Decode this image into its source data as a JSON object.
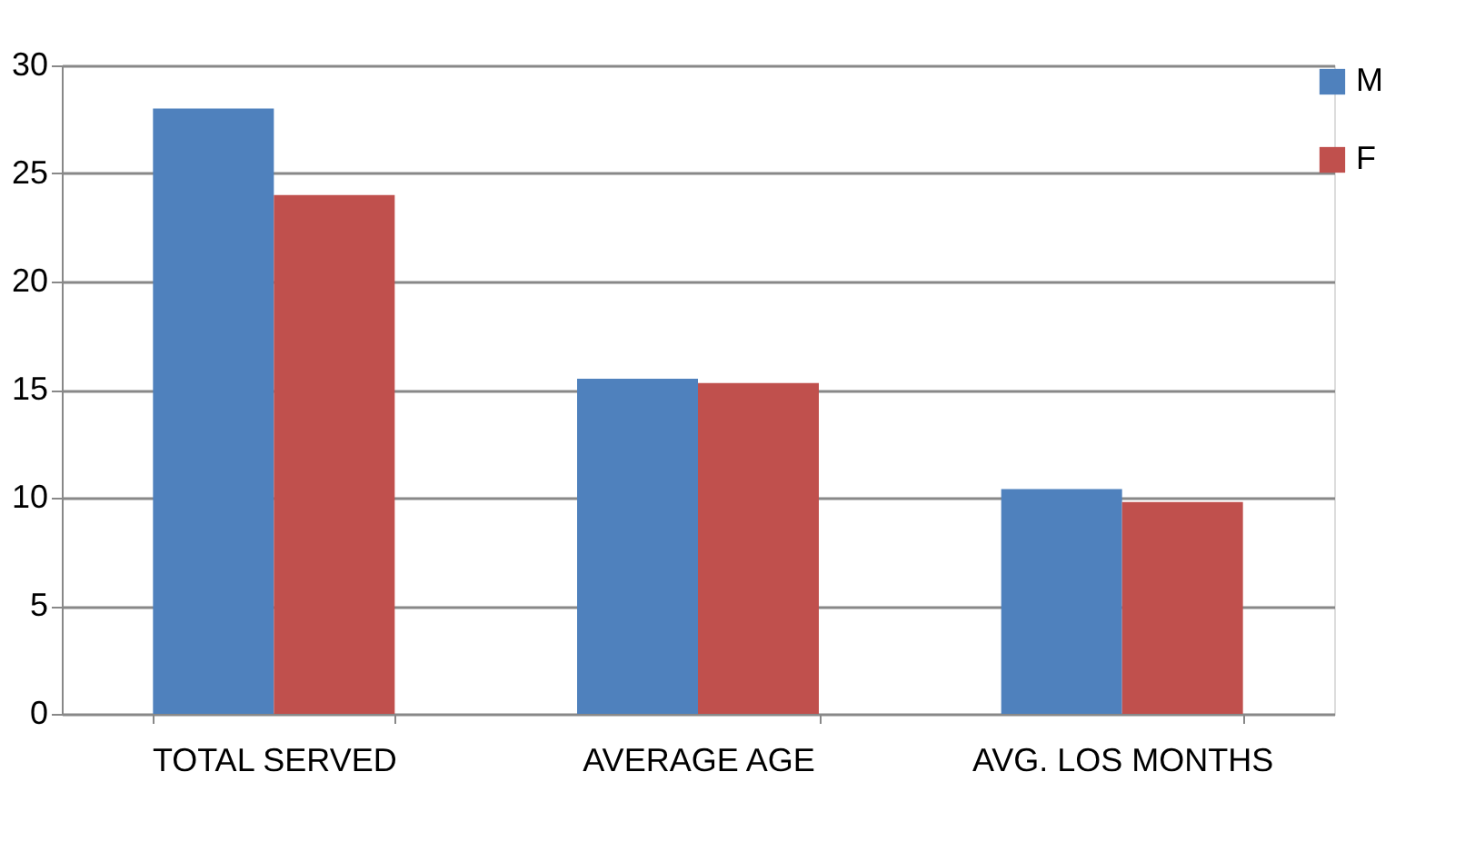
{
  "chart_data": {
    "type": "bar",
    "categories": [
      "TOTAL SERVED",
      "AVERAGE AGE",
      "AVG. LOS MONTHS"
    ],
    "series": [
      {
        "name": "M",
        "color": "#4f81bd",
        "values": [
          28,
          15.5,
          10.4
        ]
      },
      {
        "name": "F",
        "color": "#c0504d",
        "values": [
          24,
          15.3,
          9.8
        ]
      }
    ],
    "ylim": [
      0,
      30
    ],
    "yticks": [
      0,
      5,
      10,
      15,
      20,
      25,
      30
    ],
    "grid": "y",
    "legend": "right"
  }
}
